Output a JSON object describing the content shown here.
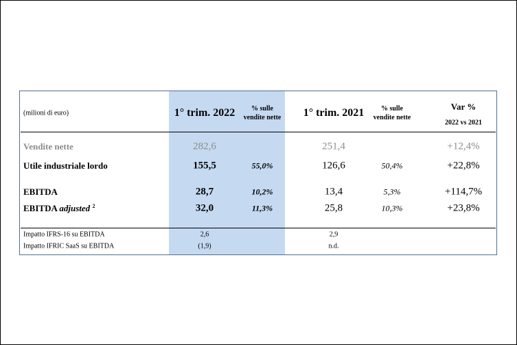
{
  "table": {
    "header": {
      "unit": "(milioni di euro)",
      "columns": [
        [
          "1° trim. 2022"
        ],
        [
          "% sulle",
          "vendite nette"
        ],
        [
          "1° trim. 2021"
        ],
        [
          "% sulle",
          "vendite nette"
        ],
        [
          "Var %",
          "2022 vs 2021"
        ]
      ]
    },
    "rows": [
      {
        "label": "Vendite nette",
        "q1_2022": "282,6",
        "q1_2021": "251,4",
        "var": "+12,4%"
      },
      {
        "label": "Utile industriale lordo",
        "q1_2022": "155,5",
        "pct_2022": "55,0%",
        "q1_2021": "126,6",
        "pct_2021": "50,4%",
        "var": "+22,8%"
      },
      {
        "label": "EBITDA",
        "q1_2022": "28,7",
        "pct_2022": "10,2%",
        "q1_2021": "13,4",
        "pct_2021": "5,3%",
        "var": "+114,7%"
      },
      {
        "label": "EBITDA",
        "label_italic": "adjusted",
        "note": "2",
        "q1_2022": "32,0",
        "pct_2022": "11,3%",
        "q1_2021": "25,8",
        "pct_2021": "10,3%",
        "var": "+23,8%"
      }
    ],
    "footer_rows": [
      {
        "label": "Impatto IFRS-16 su EBITDA",
        "q1_2022": "2,6",
        "q1_2021": "2,9"
      },
      {
        "label": "Impatto IFRIC SaaS su EBITDA",
        "q1_2022": "(1,9)",
        "q1_2021": "n.d."
      }
    ]
  }
}
